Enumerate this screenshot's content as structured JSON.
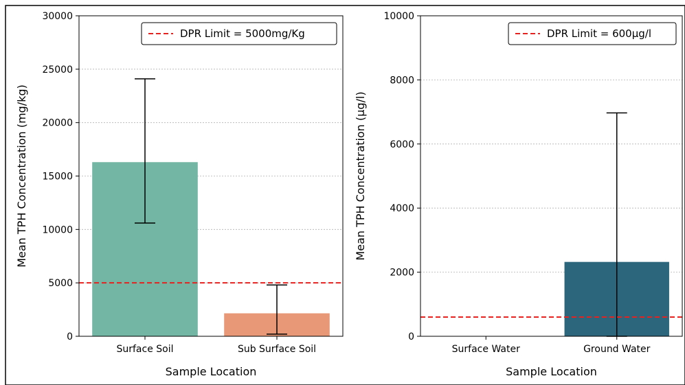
{
  "chart_data": [
    {
      "type": "bar",
      "xlabel": "Sample Location",
      "ylabel": "Mean TPH Concentration (mg/kg)",
      "categories": [
        "Surface Soil",
        "Sub Surface Soil"
      ],
      "values": [
        16300,
        2150
      ],
      "error_low": [
        10600,
        200
      ],
      "error_high": [
        24100,
        4800
      ],
      "colors": [
        "#73b6a3",
        "#e99877"
      ],
      "ylim": [
        0,
        30000
      ],
      "yticks": [
        0,
        5000,
        10000,
        15000,
        20000,
        25000,
        30000
      ],
      "ytick_labels": [
        "0",
        "5000",
        "10000",
        "15000",
        "20000",
        "25000",
        "30000"
      ],
      "grid": "horizontal dotted",
      "hline": {
        "value": 5000,
        "color": "#e8211f",
        "style": "dashed",
        "label": "DPR Limit = 5000mg/Kg"
      },
      "legend_position": "top-right"
    },
    {
      "type": "bar",
      "xlabel": "Sample Location",
      "ylabel": "Mean TPH Concentration (μg/l)",
      "categories": [
        "Surface Water",
        "Ground Water"
      ],
      "values": [
        0,
        2320
      ],
      "error_low": [
        0,
        0
      ],
      "error_high": [
        0,
        6970
      ],
      "colors": [
        "#2c667c",
        "#2c667c"
      ],
      "ylim": [
        0,
        10000
      ],
      "yticks": [
        0,
        2000,
        4000,
        6000,
        8000,
        10000
      ],
      "ytick_labels": [
        "0",
        "2000",
        "4000",
        "6000",
        "8000",
        "10000"
      ],
      "grid": "horizontal dotted",
      "hline": {
        "value": 600,
        "color": "#e8211f",
        "style": "dashed",
        "label": "DPR Limit = 600μg/l"
      },
      "legend_position": "top-right"
    }
  ]
}
